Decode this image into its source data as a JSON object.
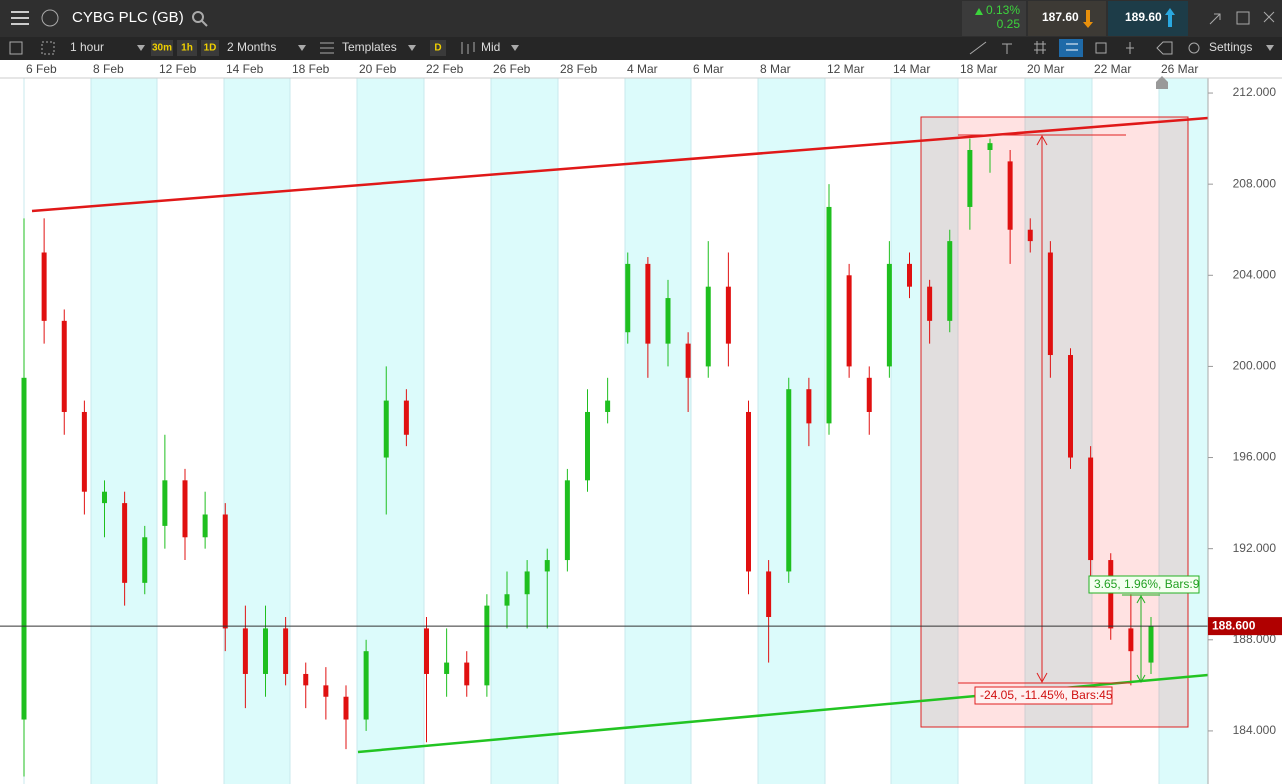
{
  "header": {
    "title": "CYBG PLC (GB)",
    "change_percent": "0.13%",
    "change": "0.25",
    "sell": "187.60",
    "buy": "189.60"
  },
  "toolbar": {
    "interval": "1 hour",
    "quick_intervals": [
      "30m",
      "1h",
      "1D"
    ],
    "range": "2 Months",
    "templates": "Templates",
    "d_button": "D",
    "price_type": "Mid",
    "settings": "Settings"
  },
  "chart_data": {
    "type": "candlestick",
    "date_labels": [
      "6 Feb",
      "8 Feb",
      "12 Feb",
      "14 Feb",
      "18 Feb",
      "20 Feb",
      "22 Feb",
      "26 Feb",
      "28 Feb",
      "4 Mar",
      "6 Mar",
      "8 Mar",
      "12 Mar",
      "14 Mar",
      "18 Mar",
      "20 Mar",
      "22 Mar",
      "26 Mar"
    ],
    "up_color": "#1fbf1f",
    "down_color": "#e01010",
    "open": [
      184.5,
      205,
      202,
      198,
      194,
      194,
      190.5,
      193,
      195,
      192.5,
      193.5,
      188.5,
      186.5,
      188.5,
      186.5,
      186,
      185.5,
      184.5,
      196,
      198.5,
      188.5,
      186.5,
      187,
      186,
      189.5,
      190,
      191,
      191.5,
      195,
      198,
      201.5,
      204.5,
      201,
      201,
      200,
      203.5,
      198,
      191,
      191,
      199,
      197.5,
      204,
      199.5,
      200,
      204.5,
      203.5,
      202,
      207,
      209.5,
      209,
      206,
      205,
      200.5,
      196,
      191.5,
      188.5,
      187
    ],
    "high": [
      206.5,
      206.5,
      202.5,
      198.5,
      195,
      194.5,
      193,
      197,
      195.5,
      194.5,
      194,
      189.5,
      189.5,
      189,
      187,
      186.8,
      186,
      188,
      200,
      199,
      189,
      188.5,
      187.5,
      190,
      191,
      191.5,
      192,
      195.5,
      199,
      199.5,
      205,
      204.8,
      203.8,
      201.5,
      205.5,
      205,
      198.5,
      191.5,
      199.5,
      199.5,
      208,
      204.5,
      200,
      205.5,
      205,
      203.8,
      206,
      210,
      210,
      209.5,
      206.5,
      205.5,
      200.8,
      196.5,
      191.8,
      190,
      189
    ],
    "low": [
      182,
      201,
      197,
      193.5,
      192.5,
      189.5,
      190,
      192,
      191.5,
      192,
      187.5,
      185,
      185.5,
      186,
      185,
      184.5,
      183.2,
      184,
      193.5,
      196.5,
      183.5,
      185.5,
      185.5,
      185.5,
      188.5,
      188.5,
      188.5,
      191,
      194.5,
      197.5,
      201,
      199.5,
      200,
      198,
      199.5,
      200,
      190,
      187,
      190.5,
      196.5,
      197,
      199.5,
      197,
      199.5,
      203,
      201,
      201.5,
      206,
      208.5,
      204.5,
      205,
      199.5,
      195.5,
      190.5,
      188,
      186,
      186.5
    ],
    "close": [
      199.5,
      202,
      198,
      194.5,
      194.5,
      190.5,
      192.5,
      195,
      192.5,
      193.5,
      188.5,
      186.5,
      188.5,
      186.5,
      186,
      185.5,
      184.5,
      187.5,
      198.5,
      197,
      186.5,
      187,
      186,
      189.5,
      190,
      191,
      191.5,
      195,
      198,
      198.5,
      204.5,
      201,
      203,
      199.5,
      203.5,
      201,
      191,
      189,
      199,
      197.5,
      207,
      200,
      198,
      204.5,
      203.5,
      202,
      205.5,
      209.5,
      209.8,
      206,
      205.5,
      200.5,
      196,
      191.5,
      188.5,
      187.5,
      188.6
    ],
    "ylim": [
      181.67,
      212.66
    ],
    "yticks": [
      {
        "value": 212,
        "label": "212.000"
      },
      {
        "value": 208,
        "label": "208.000"
      },
      {
        "value": 204,
        "label": "204.000"
      },
      {
        "value": 200,
        "label": "200.000"
      },
      {
        "value": 196,
        "label": "196.000"
      },
      {
        "value": 192,
        "label": "192.000"
      },
      {
        "value": 188,
        "label": "188.000"
      },
      {
        "value": 184,
        "label": "184.000"
      }
    ],
    "current_price": 188.6,
    "current_price_label": "188.600",
    "annotations": [
      "3.65, 1.96%, Bars:9",
      "-24.05, -11.45%, Bars:45"
    ]
  }
}
